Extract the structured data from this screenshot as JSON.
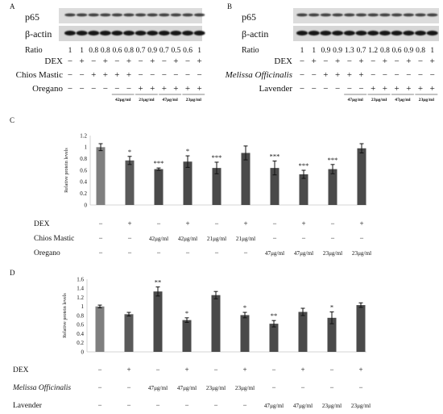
{
  "panels": {
    "A": {
      "letter": "A",
      "p65_label": "p65",
      "actin_label": "β-actin",
      "ratio_label": "Ratio",
      "ratios": [
        "1",
        "1",
        "0.8",
        "0.8",
        "0.6",
        "0.8",
        "0.7",
        "0.9",
        "0.7",
        "0.5",
        "0.6",
        "1"
      ],
      "treatments": [
        {
          "label": "DEX",
          "italic": false,
          "signs": [
            "−",
            "+",
            "−",
            "+",
            "−",
            "+",
            "−",
            "+",
            "−",
            "+",
            "−",
            "+"
          ]
        },
        {
          "label": "Chios Mastic",
          "italic": false,
          "signs": [
            "−",
            "−",
            "+",
            "+",
            "+",
            "+",
            "−",
            "−",
            "−",
            "−",
            "−",
            "−"
          ]
        },
        {
          "label": "Oregano",
          "italic": false,
          "signs": [
            "−",
            "−",
            "−",
            "−",
            "−",
            "−",
            "+",
            "+",
            "+",
            "+",
            "+",
            "+"
          ]
        }
      ],
      "doses": [
        "42μg/ml",
        "21μg/ml",
        "47μg/ml",
        "23μg/ml"
      ]
    },
    "B": {
      "letter": "B",
      "p65_label": "p65",
      "actin_label": "β-actin",
      "ratio_label": "Ratio",
      "ratios": [
        "1",
        "1",
        "0.9",
        "0.9",
        "1.3",
        "0.7",
        "1.2",
        "0.8",
        "0.6",
        "0.9",
        "0.8",
        "1"
      ],
      "treatments": [
        {
          "label": "DEX",
          "italic": false,
          "signs": [
            "−",
            "+",
            "−",
            "+",
            "−",
            "+",
            "−",
            "+",
            "−",
            "+",
            "−",
            "+"
          ]
        },
        {
          "label": "Melissa Officinalis",
          "italic": true,
          "signs": [
            "−",
            "−",
            "+",
            "+",
            "+",
            "+",
            "−",
            "−",
            "−",
            "−",
            "−",
            "−"
          ]
        },
        {
          "label": "Lavender",
          "italic": false,
          "signs": [
            "−",
            "−",
            "−",
            "−",
            "−",
            "−",
            "+",
            "+",
            "+",
            "+",
            "+",
            "+"
          ]
        }
      ],
      "doses": [
        "47μg/ml",
        "23μg/ml",
        "47μg/ml",
        "23μg/ml"
      ]
    }
  },
  "chart_data": [
    {
      "panel": "C",
      "type": "bar",
      "ylabel": "Relative protein levels",
      "ylim": [
        0,
        1.2
      ],
      "yticks": [
        "0",
        "0.2",
        "0.4",
        "0.6",
        "0.8",
        "1",
        "1.2"
      ],
      "values": [
        1.0,
        0.77,
        0.62,
        0.75,
        0.64,
        0.9,
        0.64,
        0.53,
        0.62,
        0.98
      ],
      "errors": [
        0.06,
        0.07,
        0.02,
        0.1,
        0.1,
        0.12,
        0.12,
        0.07,
        0.08,
        0.08
      ],
      "significance": [
        "",
        "*",
        "***",
        "*",
        "***",
        "",
        "***",
        "***",
        "***",
        ""
      ],
      "bar_colors": [
        "#7f7f7f",
        "#5a5a5a",
        "#4a4a4a",
        "#4a4a4a",
        "#4a4a4a",
        "#4a4a4a",
        "#4a4a4a",
        "#4a4a4a",
        "#4a4a4a",
        "#4a4a4a"
      ],
      "treatment_rows": [
        {
          "label": "DEX",
          "italic": false,
          "cells": [
            "−",
            "+",
            "−",
            "+",
            "−",
            "+",
            "−",
            "+",
            "−",
            "+"
          ]
        },
        {
          "label": "Chios Mastic",
          "italic": false,
          "cells": [
            "−",
            "−",
            "42μg/ml",
            "42μg/ml",
            "21μg/ml",
            "21μg/ml",
            "−",
            "−",
            "−",
            "−"
          ]
        },
        {
          "label": "Oregano",
          "italic": false,
          "cells": [
            "−",
            "−",
            "−",
            "−",
            "−",
            "−",
            "47μg/ml",
            "47μg/ml",
            "23μg/ml",
            "23μg/ml"
          ]
        }
      ]
    },
    {
      "panel": "D",
      "type": "bar",
      "ylabel": "Relative protein levels",
      "ylim": [
        0,
        1.6
      ],
      "yticks": [
        "0",
        "0.2",
        "0.4",
        "0.6",
        "0.8",
        "1",
        "1.2",
        "1.4",
        "1.6"
      ],
      "values": [
        1.0,
        0.83,
        1.33,
        0.7,
        1.25,
        0.81,
        0.62,
        0.88,
        0.75,
        1.03
      ],
      "errors": [
        0.03,
        0.04,
        0.1,
        0.05,
        0.08,
        0.06,
        0.07,
        0.08,
        0.13,
        0.05
      ],
      "significance": [
        "",
        "",
        "**",
        "*",
        "",
        "*",
        "**",
        "",
        "*",
        ""
      ],
      "bar_colors": [
        "#7f7f7f",
        "#5a5a5a",
        "#4a4a4a",
        "#4a4a4a",
        "#4a4a4a",
        "#4a4a4a",
        "#4a4a4a",
        "#4a4a4a",
        "#4a4a4a",
        "#4a4a4a"
      ],
      "treatment_rows": [
        {
          "label": "DEX",
          "italic": false,
          "cells": [
            "−",
            "+",
            "−",
            "+",
            "−",
            "+",
            "−",
            "+",
            "−",
            "+"
          ]
        },
        {
          "label": "Melissa Officinalis",
          "italic": true,
          "cells": [
            "−",
            "−",
            "47μg/ml",
            "47μg/ml",
            "23μg/ml",
            "23μg/ml",
            "−",
            "−",
            "−",
            "−"
          ]
        },
        {
          "label": "Lavender",
          "italic": false,
          "cells": [
            "−",
            "−",
            "−",
            "−",
            "−",
            "−",
            "47μg/ml",
            "47μg/ml",
            "23μg/ml",
            "23μg/ml"
          ]
        }
      ]
    }
  ],
  "chart_letters": [
    "C",
    "D"
  ]
}
